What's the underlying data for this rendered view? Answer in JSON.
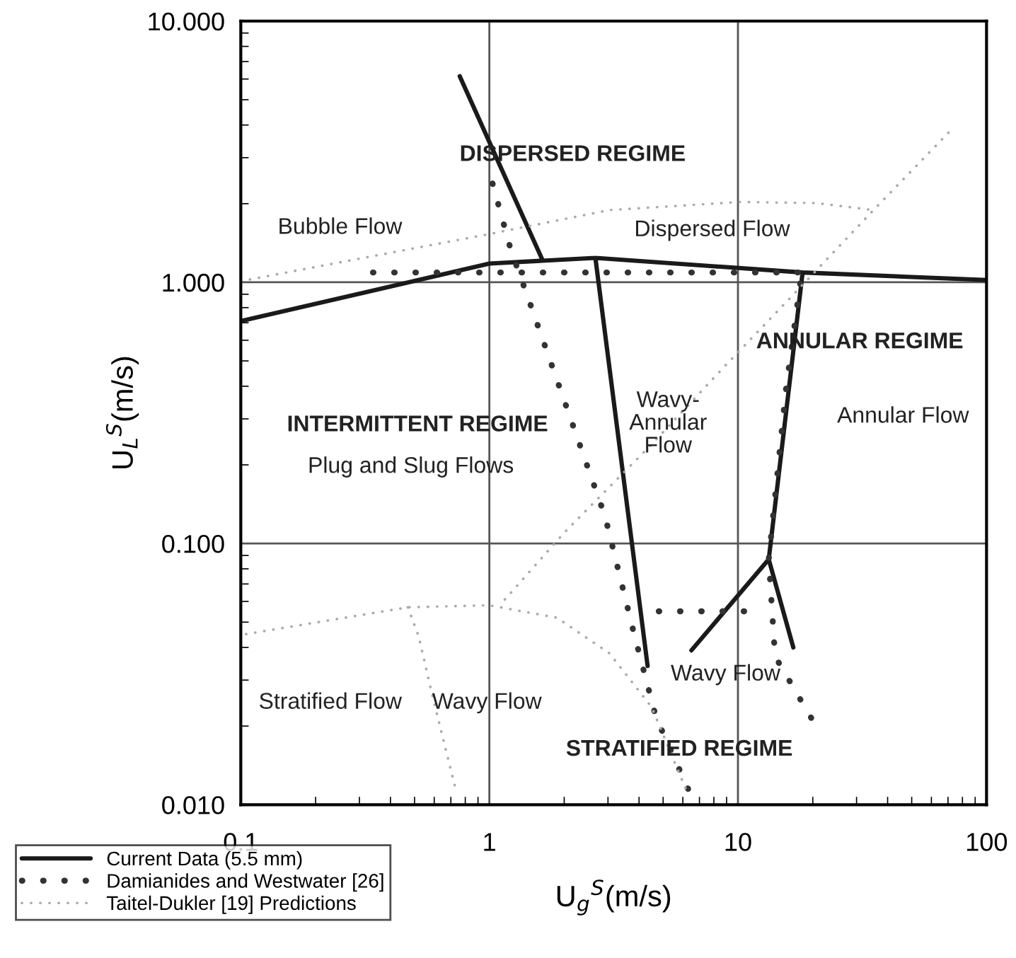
{
  "chart_data": {
    "type": "line",
    "xlabel": "U$_{g}$$^{S}$(m/s)",
    "ylabel": "U$_{L}$$^{S}$(m/s)",
    "log": "xy",
    "xlim": [
      0.1,
      100
    ],
    "ylim": [
      0.01,
      10
    ],
    "xticks": [
      0.1,
      1,
      10,
      100
    ],
    "yticks": [
      {
        "value": 0.01,
        "label": "0.010"
      },
      {
        "value": 0.1,
        "label": "0.100"
      },
      {
        "value": 1,
        "label": "1.000"
      },
      {
        "value": 10,
        "label": "10.000"
      }
    ],
    "grid": true,
    "legend": "bottom left",
    "marker": "none",
    "series": [
      {
        "name": "Current Data (5.5 mm)",
        "color": "#1a1a1a",
        "line_style": "solid",
        "x": [
          0.1,
          1,
          2.67,
          18.2,
          100,
          null,
          0.76,
          1.64,
          null,
          2.67,
          4.33,
          null,
          18.2,
          13.3,
          6.5,
          null,
          13.3,
          16.7
        ],
        "values": [
          0.71,
          1.18,
          1.24,
          1.09,
          1.02,
          null,
          6.15,
          1.21,
          null,
          1.24,
          0.034,
          null,
          1.09,
          0.087,
          0.039,
          null,
          0.087,
          0.04
        ]
      },
      {
        "name": "Damianides and Westwater [26]",
        "color": "#333333",
        "line_style": "dotted",
        "x": [
          0.34,
          18.2,
          null,
          1.03,
          1.22,
          1.42,
          2.05,
          2.92,
          3.8,
          4.68,
          6.49,
          null,
          4.8,
          11.2,
          null,
          17.8,
          15.6,
          13.3,
          14.1,
          20.0
        ],
        "values": [
          1.09,
          1.09,
          null,
          2.39,
          1.33,
          0.89,
          0.33,
          0.127,
          0.046,
          0.0216,
          0.0108,
          null,
          0.055,
          0.055,
          null,
          0.99,
          0.39,
          0.087,
          0.037,
          0.021
        ]
      },
      {
        "name": "Taitel-Dukler [19] Predictions",
        "color": "#aaaaaa",
        "line_style": "dotted",
        "x": [
          0.1,
          1,
          3.04,
          10.2,
          20.8,
          35.1,
          null,
          70.3,
          35.1,
          16.2,
          8.9,
          4.5,
          2.0,
          1.1,
          null,
          0.105,
          0.47,
          1,
          1.87,
          3.04,
          4.5,
          6.24,
          null,
          0.47,
          0.52,
          0.58,
          0.65,
          0.74
        ],
        "values": [
          1.01,
          1.53,
          1.89,
          2.03,
          2.01,
          1.89,
          null,
          3.74,
          1.89,
          0.87,
          0.48,
          0.24,
          0.11,
          0.058,
          null,
          0.045,
          0.057,
          0.058,
          0.052,
          0.038,
          0.0236,
          0.0112,
          null,
          0.057,
          0.044,
          0.028,
          0.018,
          0.011
        ]
      }
    ],
    "annotations": [
      "DISPERSED REGIME",
      "Bubble Flow",
      "Dispersed Flow",
      "ANNULAR REGIME",
      "Wavy-\nAnnular\nFlow",
      "Annular Flow",
      "INTERMITTENT REGIME",
      "Plug and Slug Flows",
      "Stratified Flow",
      "Wavy Flow",
      "Wavy Flow",
      "STRATIFIED REGIME"
    ]
  }
}
